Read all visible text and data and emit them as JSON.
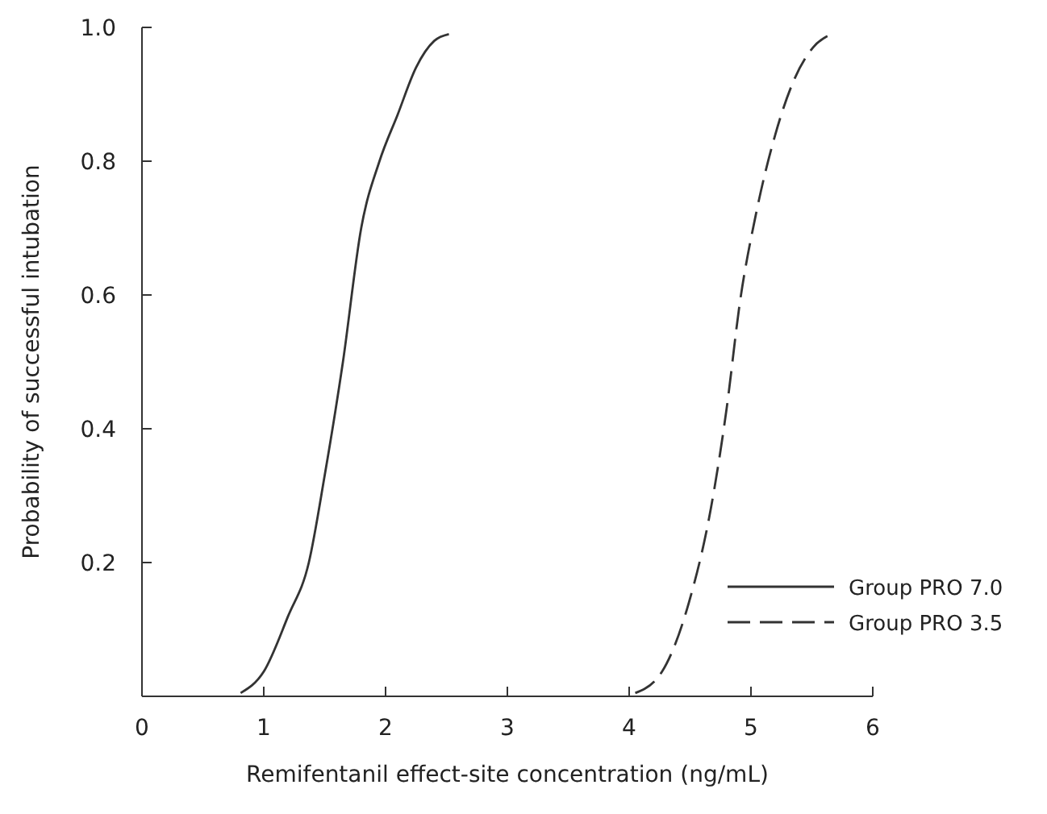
{
  "chart_data": {
    "type": "line",
    "xlabel": "Remifentanil effect-site concentration (ng/mL)",
    "ylabel": "Probability of successful intubation",
    "xlim": [
      0,
      6
    ],
    "xticks": [
      0,
      1,
      2,
      3,
      4,
      5,
      6
    ],
    "ylim": [
      0,
      1
    ],
    "yticks": [
      0.2,
      0.4,
      0.6,
      0.8,
      {
        "value": 1,
        "label": "1.0"
      }
    ],
    "grid": false,
    "legend": "bottom right",
    "marker": "none",
    "series": [
      {
        "name": "Group PRO 7.0",
        "color": "#333333",
        "line_style": "solid",
        "x": [
          0.81,
          1.0,
          1.2,
          1.37,
          1.5,
          1.65,
          1.8,
          1.95,
          2.1,
          2.25,
          2.4,
          2.52
        ],
        "values": [
          0.005,
          0.037,
          0.12,
          0.2,
          0.33,
          0.5,
          0.7,
          0.8,
          0.87,
          0.94,
          0.98,
          0.99
        ]
      },
      {
        "name": "Group PRO 3.5",
        "color": "#333333",
        "line_style": "dashed",
        "x": [
          4.05,
          4.27,
          4.49,
          4.67,
          4.8,
          4.91,
          5.04,
          5.2,
          5.35,
          5.51,
          5.66
        ],
        "values": [
          0.005,
          0.037,
          0.14,
          0.28,
          0.43,
          0.59,
          0.72,
          0.84,
          0.92,
          0.97,
          0.99
        ]
      }
    ]
  }
}
